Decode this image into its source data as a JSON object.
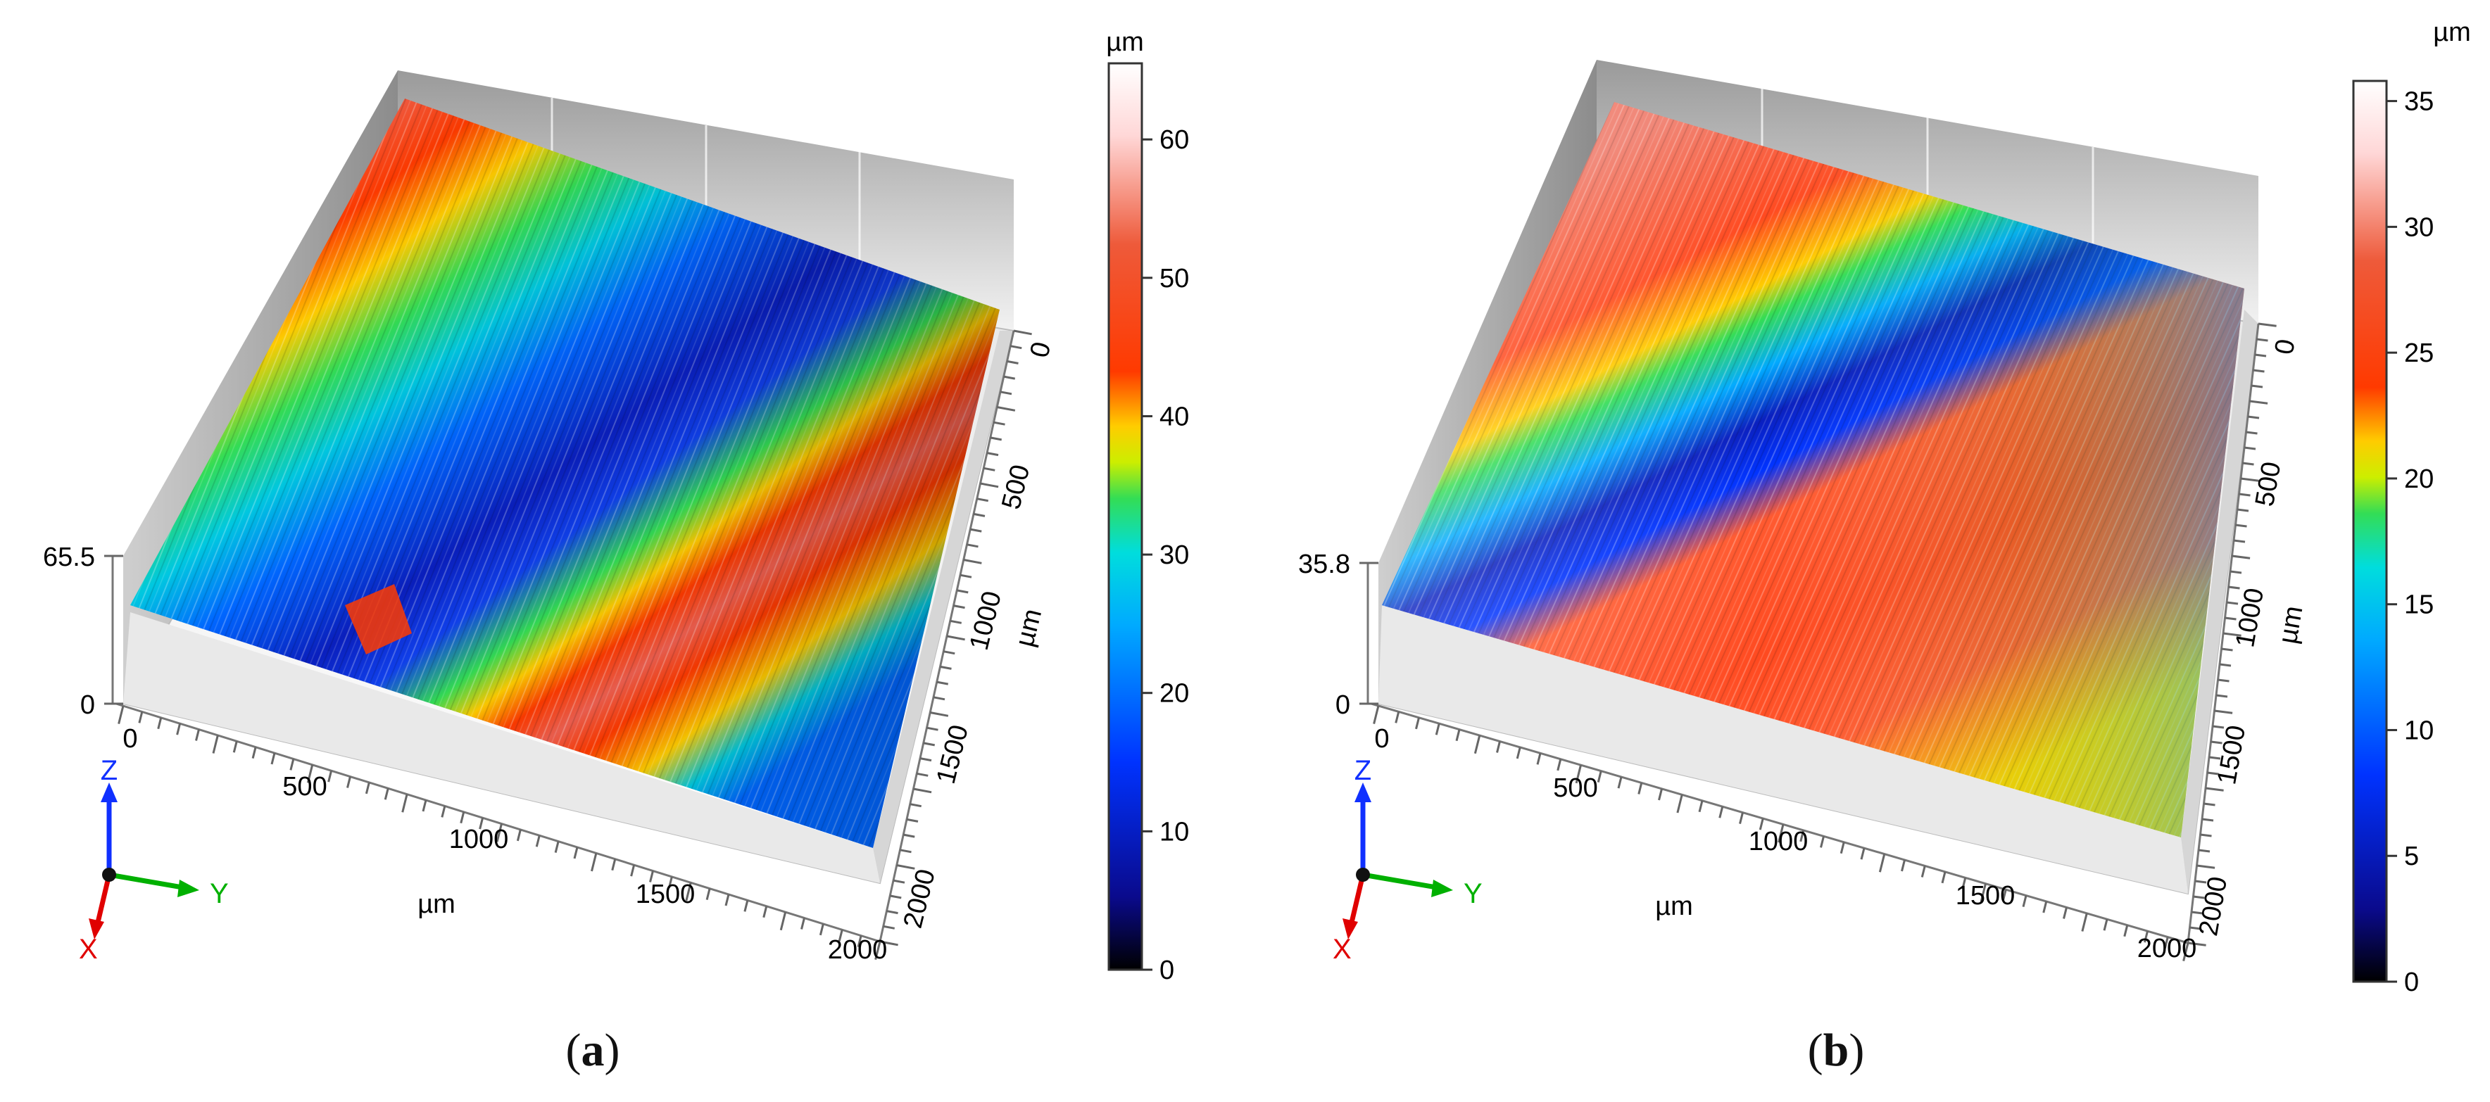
{
  "panels": [
    {
      "id": "a",
      "caption_open": "(",
      "caption_letter": "a",
      "caption_close": ")",
      "z_max_label": "65.5",
      "z_min_label": "0",
      "x_axis_ticks": [
        "0",
        "500",
        "1000",
        "1500",
        "2000"
      ],
      "x_axis_unit": "µm",
      "y_axis_ticks": [
        "0",
        "500",
        "1000",
        "1500",
        "2000"
      ],
      "y_axis_unit": "µm",
      "colorbar_unit": "µm",
      "colorbar_ticks": [
        "0",
        "10",
        "20",
        "30",
        "40",
        "50",
        "60"
      ],
      "colorbar_values": [
        0,
        10,
        20,
        30,
        40,
        50,
        60
      ],
      "colorbar_max": 65.5,
      "triad": {
        "z": "Z",
        "y": "Y",
        "x": "X"
      }
    },
    {
      "id": "b",
      "caption_open": "(",
      "caption_letter": "b",
      "caption_close": ")",
      "z_max_label": "35.8",
      "z_min_label": "0",
      "x_axis_ticks": [
        "0",
        "500",
        "1000",
        "1500",
        "2000"
      ],
      "x_axis_unit": "µm",
      "y_axis_ticks": [
        "0",
        "500",
        "1000",
        "1500",
        "2000"
      ],
      "y_axis_unit": "µm",
      "colorbar_unit": "µm",
      "colorbar_ticks": [
        "0",
        "5",
        "10",
        "15",
        "20",
        "25",
        "30",
        "35"
      ],
      "colorbar_values": [
        0,
        5,
        10,
        15,
        20,
        25,
        30,
        35
      ],
      "colorbar_max": 35.8,
      "triad": {
        "z": "Z",
        "y": "Y",
        "x": "X"
      }
    }
  ],
  "colors": {
    "colormap": [
      "#000000",
      "#0a0a8c",
      "#0033ff",
      "#00aaff",
      "#00dddd",
      "#33dd55",
      "#ccee00",
      "#ffcc00",
      "#ff3a00",
      "#ee5a3a",
      "#ffd7d7",
      "#ffffff"
    ],
    "axis_x": "#e00000",
    "axis_y": "#00b000",
    "axis_z": "#1030ff"
  }
}
